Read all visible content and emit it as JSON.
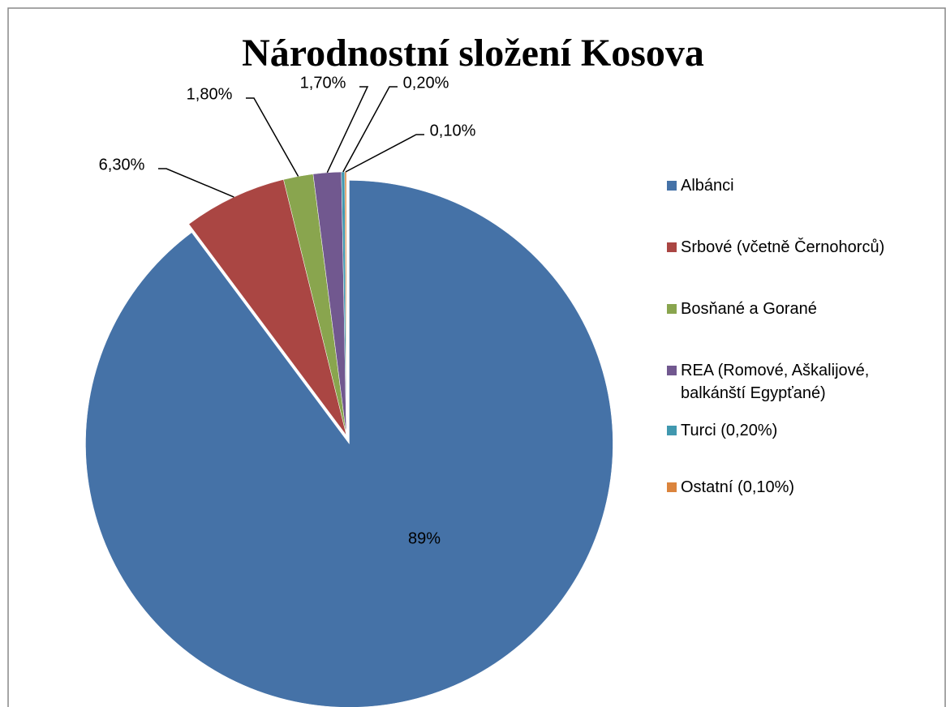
{
  "chart_data": {
    "type": "pie",
    "title": "Národnostní složení Kosova",
    "categories": [
      "Albánci",
      "Srbové (včetně Černohorců)",
      "Bosňané a Gorané",
      "REA (Romové, Aškalijové, balkánští Egypťané)",
      "Turci (0,20%)",
      "Ostatní (0,10%)"
    ],
    "values": [
      89,
      6.3,
      1.8,
      1.7,
      0.2,
      0.1
    ],
    "value_labels": [
      "89%",
      "6,30%",
      "1,80%",
      "1,70%",
      "0,20%",
      "0,10%"
    ],
    "colors": [
      "#4572a7",
      "#aa4643",
      "#89a54e",
      "#71588f",
      "#4198af",
      "#db843d"
    ],
    "legend": "right"
  }
}
